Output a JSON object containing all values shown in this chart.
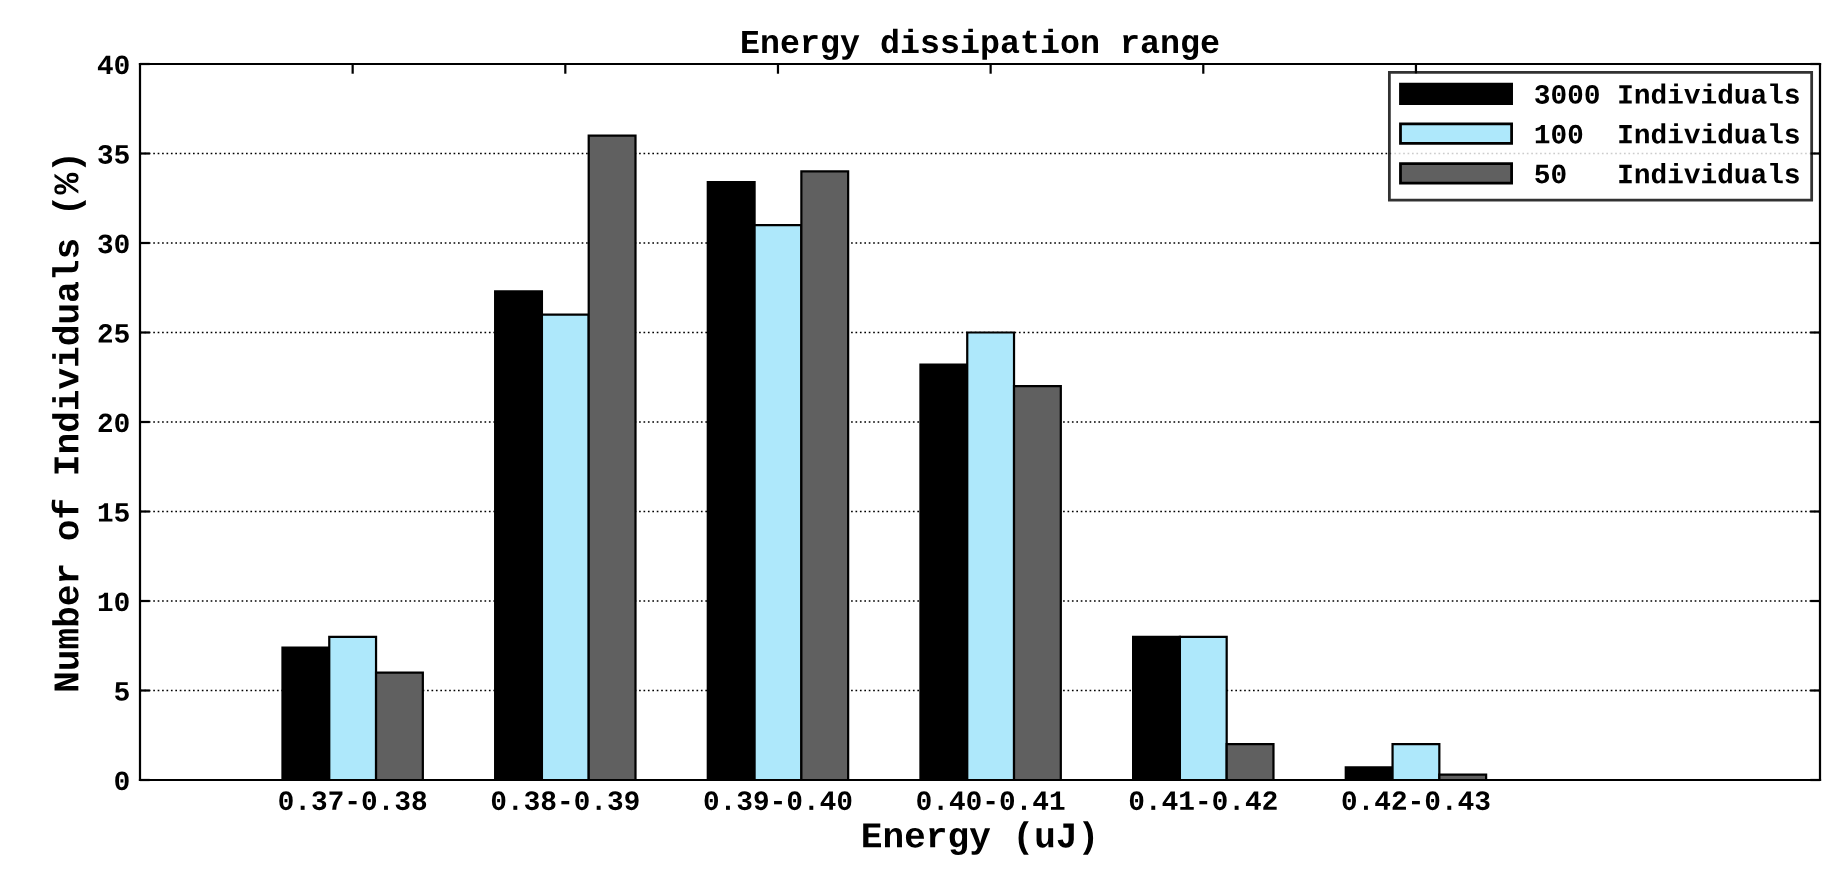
{
  "chart_data": {
    "type": "bar",
    "title": "Energy dissipation range",
    "xlabel": "Energy (uJ)",
    "ylabel": "Number of Individuals (%)",
    "categories": [
      "0.37-0.38",
      "0.38-0.39",
      "0.39-0.40",
      "0.40-0.41",
      "0.41-0.42",
      "0.42-0.43"
    ],
    "series": [
      {
        "name": "3000 Individuals",
        "color": "#000000",
        "values": [
          7.4,
          27.3,
          33.4,
          23.2,
          8,
          0.7
        ]
      },
      {
        "name": "100  Individuals",
        "color": "#aee8fb",
        "values": [
          8,
          26,
          31,
          25,
          8,
          2
        ]
      },
      {
        "name": "50   Individuals",
        "color": "#606060",
        "values": [
          6,
          36,
          34,
          22,
          2,
          0.3
        ]
      }
    ],
    "ylim": [
      0,
      40
    ],
    "yticks": [
      0,
      5,
      10,
      15,
      20,
      25,
      30,
      35,
      40
    ],
    "grid": "y",
    "legend": "top right"
  }
}
